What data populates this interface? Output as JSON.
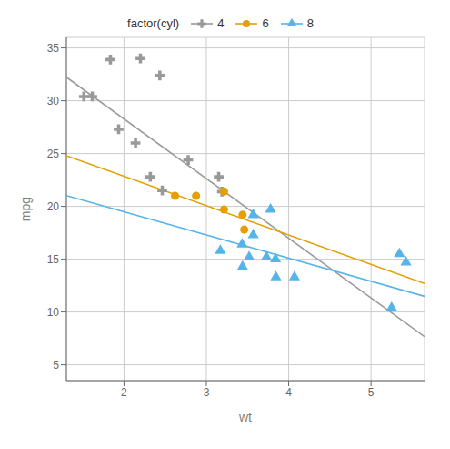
{
  "chart_data": {
    "type": "scatter",
    "title": "",
    "xlabel": "wt",
    "ylabel": "mpg",
    "legend_title": "factor(cyl)",
    "legend": "top",
    "grid": true,
    "xlim": [
      1.3,
      5.65
    ],
    "xticks": [
      2,
      3,
      4,
      5
    ],
    "ylim": [
      3.5,
      36.0
    ],
    "yticks": [
      5,
      10,
      15,
      20,
      25,
      30,
      35
    ],
    "series": [
      {
        "name": "4",
        "color": "#999999",
        "marker": "plus",
        "x": [
          1.513,
          1.615,
          1.835,
          1.935,
          2.14,
          2.2,
          2.32,
          2.435,
          2.465,
          2.78,
          3.15,
          3.19
        ],
        "values": [
          30.4,
          30.4,
          33.9,
          27.3,
          26.0,
          34.0,
          22.8,
          32.4,
          21.5,
          24.4,
          22.8,
          21.4
        ],
        "fit": {
          "x": [
            1.3,
            5.65
          ],
          "values": [
            32.23,
            7.666
          ]
        }
      },
      {
        "name": "6",
        "color": "#E69F00",
        "marker": "circle",
        "x": [
          2.62,
          2.875,
          3.215,
          3.215,
          3.44,
          3.46
        ],
        "values": [
          21.0,
          21.0,
          21.4,
          19.7,
          19.2,
          17.8
        ],
        "fit": {
          "x": [
            1.3,
            5.65
          ],
          "values": [
            24.795,
            12.701
          ]
        }
      },
      {
        "name": "8",
        "color": "#56B4E9",
        "marker": "triangle",
        "x": [
          3.17,
          3.435,
          3.44,
          3.52,
          3.57,
          3.57,
          3.73,
          3.78,
          3.84,
          3.845,
          4.07,
          5.25,
          5.345,
          5.424
        ],
        "values": [
          15.8,
          16.4,
          14.3,
          15.2,
          17.3,
          19.2,
          15.2,
          19.7,
          15.0,
          13.3,
          13.3,
          10.4,
          15.5,
          14.7
        ],
        "fit": {
          "x": [
            1.3,
            5.65
          ],
          "values": [
            21.018,
            11.481
          ]
        }
      }
    ]
  }
}
